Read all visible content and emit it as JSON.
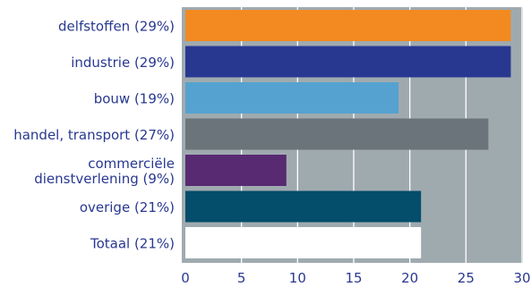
{
  "chart_data": {
    "type": "bar",
    "orientation": "horizontal",
    "categories": [
      "delfstoffen (29%)",
      "industrie (29%)",
      "bouw (19%)",
      "handel, transport (27%)",
      "commerciële\ndienstverlening (9%)",
      "overige (21%)",
      "Totaal (21%)"
    ],
    "values": [
      29,
      29,
      19,
      27,
      9,
      21,
      21
    ],
    "colors": [
      "#f28a21",
      "#283891",
      "#55a2d0",
      "#6b747b",
      "#582a72",
      "#044d6b",
      "#ffffff"
    ],
    "xlim": [
      0,
      30
    ],
    "xticks": [
      "0",
      "5",
      "10",
      "15",
      "20",
      "25",
      "30"
    ],
    "xtick_values": [
      0,
      5,
      10,
      15,
      20,
      25,
      30
    ],
    "grid": "vertical",
    "plot_background": "#9faaaf",
    "label_color": "#283891"
  }
}
